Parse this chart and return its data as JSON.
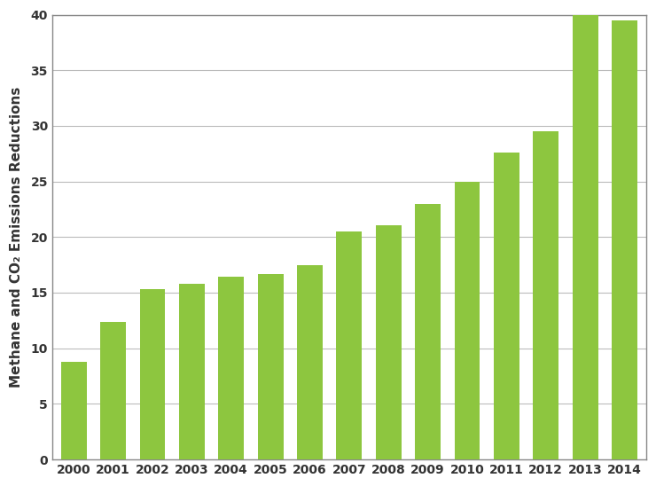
{
  "years": [
    2000,
    2001,
    2002,
    2003,
    2004,
    2005,
    2006,
    2007,
    2008,
    2009,
    2010,
    2011,
    2012,
    2013,
    2014
  ],
  "values": [
    8.8,
    12.4,
    15.3,
    15.8,
    16.4,
    16.7,
    17.5,
    20.5,
    21.1,
    23.0,
    25.0,
    27.6,
    29.5,
    40.0,
    39.5
  ],
  "bar_color": "#8dc63f",
  "bar_edge_color": "#8dc63f",
  "ylabel": "Methane and CO₂ Emissions Reductions",
  "ylim": [
    0,
    40
  ],
  "yticks": [
    0,
    5,
    10,
    15,
    20,
    25,
    30,
    35,
    40
  ],
  "grid_color": "#bbbbbb",
  "background_color": "#ffffff",
  "bar_width": 0.65,
  "ylabel_fontsize": 11,
  "tick_fontsize": 10,
  "spine_color": "#888888",
  "tick_label_color": "#333333",
  "figsize": [
    7.4,
    5.48
  ],
  "dpi": 100
}
